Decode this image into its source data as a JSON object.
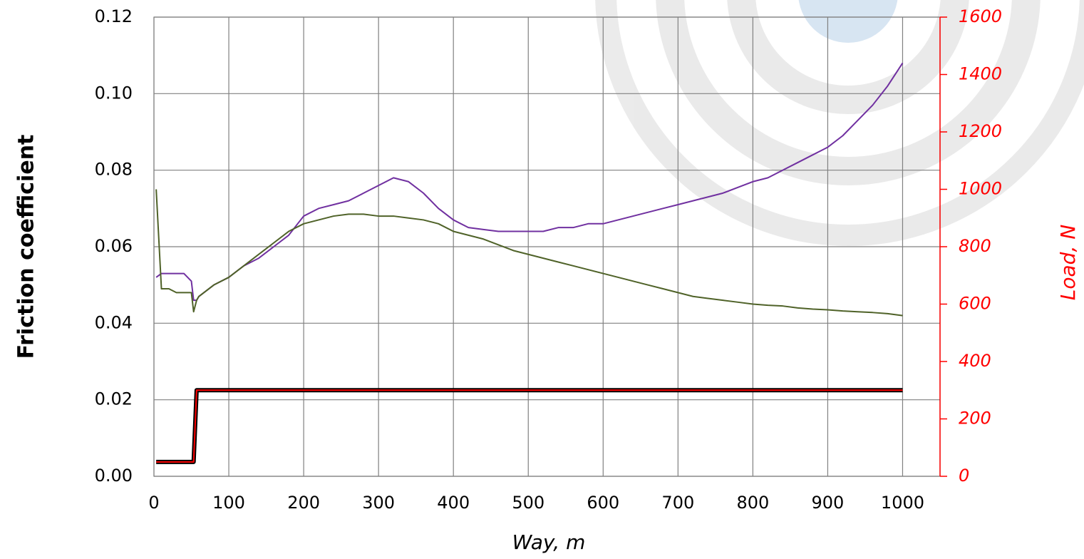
{
  "chart_data": {
    "type": "line",
    "x_label": "Way, m",
    "y_label": "Friction coefficient",
    "y2_label": "Load, N",
    "xlim": [
      0,
      1050
    ],
    "xticks": [
      0,
      100,
      200,
      300,
      400,
      500,
      600,
      700,
      800,
      900,
      1000
    ],
    "ylim": [
      0,
      0.12
    ],
    "yticks": [
      {
        "value": 0,
        "label": "0.00"
      },
      0.02,
      0.04,
      0.06,
      0.08,
      {
        "value": 0.1,
        "label": "0.10"
      },
      0.12
    ],
    "y2lim": [
      0,
      1600
    ],
    "y2ticks": [
      0,
      200,
      400,
      600,
      800,
      1000,
      1200,
      1400,
      1600
    ],
    "grid": true,
    "x": [
      3,
      10,
      20,
      30,
      40,
      50,
      53,
      57,
      60,
      80,
      100,
      120,
      140,
      160,
      180,
      200,
      220,
      240,
      260,
      280,
      300,
      320,
      340,
      360,
      380,
      400,
      420,
      440,
      460,
      480,
      500,
      520,
      540,
      560,
      580,
      600,
      620,
      640,
      660,
      680,
      700,
      720,
      740,
      760,
      780,
      800,
      820,
      840,
      860,
      880,
      900,
      920,
      940,
      960,
      980,
      1000
    ],
    "series": [
      {
        "color": "#7030a0",
        "width": 2,
        "values": [
          0.052,
          0.053,
          0.053,
          0.053,
          0.053,
          0.051,
          0.046,
          0.046,
          0.047,
          0.05,
          0.052,
          0.055,
          0.057,
          0.06,
          0.063,
          0.068,
          0.07,
          0.071,
          0.072,
          0.074,
          0.076,
          0.078,
          0.077,
          0.074,
          0.07,
          0.067,
          0.065,
          0.0645,
          0.064,
          0.064,
          0.064,
          0.064,
          0.065,
          0.065,
          0.066,
          0.066,
          0.067,
          0.068,
          0.069,
          0.07,
          0.071,
          0.072,
          0.073,
          0.074,
          0.0755,
          0.077,
          0.078,
          0.08,
          0.082,
          0.084,
          0.086,
          0.089,
          0.093,
          0.097,
          0.102,
          0.108
        ]
      },
      {
        "color": "#4f6228",
        "width": 2,
        "values": [
          0.075,
          0.049,
          0.049,
          0.048,
          0.048,
          0.048,
          0.043,
          0.046,
          0.047,
          0.05,
          0.052,
          0.055,
          0.058,
          0.061,
          0.064,
          0.066,
          0.067,
          0.068,
          0.0685,
          0.0685,
          0.068,
          0.068,
          0.0675,
          0.067,
          0.066,
          0.064,
          0.063,
          0.062,
          0.0605,
          0.059,
          0.058,
          0.057,
          0.056,
          0.055,
          0.054,
          0.053,
          0.052,
          0.051,
          0.05,
          0.049,
          0.048,
          0.047,
          0.0465,
          0.046,
          0.0455,
          0.045,
          0.0447,
          0.0445,
          0.044,
          0.0437,
          0.0435,
          0.0432,
          0.043,
          0.0428,
          0.0425,
          0.042
        ]
      },
      {
        "color": "#000000",
        "width": 6,
        "axis": "y2",
        "values": [
          50,
          50,
          50,
          50,
          50,
          50,
          50,
          300,
          300,
          300,
          300,
          300,
          300,
          300,
          300,
          300,
          300,
          300,
          300,
          300,
          300,
          300,
          300,
          300,
          300,
          300,
          300,
          300,
          300,
          300,
          300,
          300,
          300,
          300,
          300,
          300,
          300,
          300,
          300,
          300,
          300,
          300,
          300,
          300,
          300,
          300,
          300,
          300,
          300,
          300,
          300,
          300,
          300,
          300,
          300,
          300
        ]
      },
      {
        "color": "#ff0000",
        "width": 2,
        "axis": "y2",
        "values": [
          50,
          50,
          50,
          50,
          50,
          50,
          50,
          300,
          300,
          300,
          300,
          300,
          300,
          300,
          300,
          300,
          300,
          300,
          300,
          300,
          300,
          300,
          300,
          300,
          300,
          300,
          300,
          300,
          300,
          300,
          300,
          300,
          300,
          300,
          300,
          300,
          300,
          300,
          300,
          300,
          300,
          300,
          300,
          300,
          300,
          300,
          300,
          300,
          300,
          300,
          300,
          300,
          300,
          300,
          300,
          300
        ]
      }
    ]
  }
}
